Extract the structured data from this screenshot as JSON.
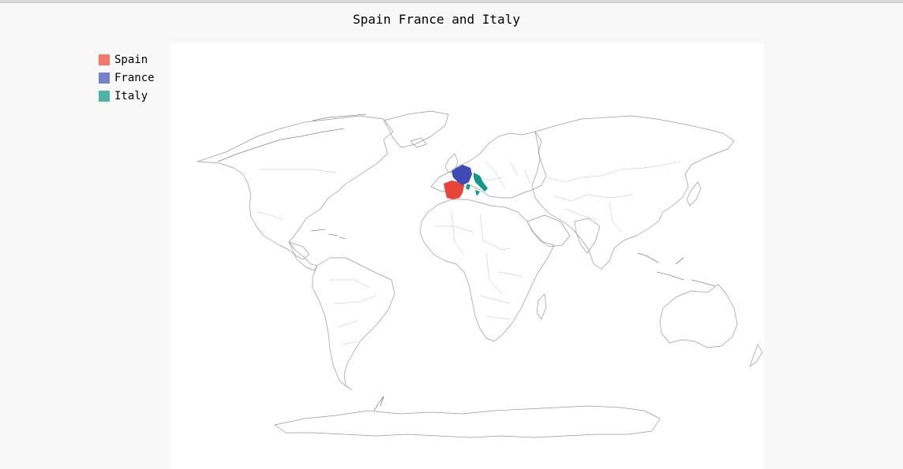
{
  "title": "Spain France and Italy",
  "legend": [
    {
      "label": "Spain",
      "color": "#f5776b"
    },
    {
      "label": "France",
      "color": "#7581cc"
    },
    {
      "label": "Italy",
      "color": "#4db3a5"
    }
  ],
  "chart_data": {
    "type": "choropleth map",
    "map": "world",
    "highlighted_regions": [
      {
        "name": "Spain",
        "color": "#e8453a"
      },
      {
        "name": "France",
        "color": "#3f4ab5"
      },
      {
        "name": "Italy",
        "color": "#0f9a86"
      }
    ],
    "legend_placement": "top-left"
  }
}
